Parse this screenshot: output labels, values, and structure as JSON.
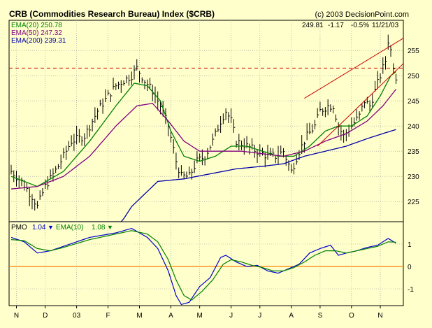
{
  "title": "CRB (Commodities Research Bureau) Index ($CRB)",
  "copyright": "(c) 2003 DecisionPoint.com",
  "quote": {
    "last": "249.81",
    "change": "-1.17",
    "pct": "-0.5%",
    "date": "11/21/03"
  },
  "legend_top": [
    {
      "label": "EMA(20) 250.78",
      "color": "#008000"
    },
    {
      "label": "EMA(50) 247.32",
      "color": "#800080"
    },
    {
      "label": "EMA(200) 239.31",
      "color": "#0000aa"
    }
  ],
  "legend_bottom": {
    "pmo_label": "PMO",
    "pmo_value": "1.04",
    "pmo_arrow": "▼",
    "ema_label": "EMA(10)",
    "ema_value": "1.08",
    "ema_arrow": "▼"
  },
  "colors": {
    "background": "#ffffcc",
    "price": "#000000",
    "ema20": "#008000",
    "ema50": "#800080",
    "ema200": "#0000aa",
    "pmo": "#0000cc",
    "pmo_signal": "#008000",
    "resistance": "#cc0000",
    "zero_line": "#ff8000"
  },
  "chart_data": [
    {
      "type": "line",
      "subtype": "bar-ohlc",
      "title": "CRB (Commodities Research Bureau) Index ($CRB)",
      "x_ticks": [
        "N",
        "D",
        "03",
        "F",
        "M",
        "A",
        "M",
        "J",
        "J",
        "A",
        "S",
        "O",
        "N"
      ],
      "y_ticks": [
        225,
        230,
        235,
        240,
        245,
        250,
        255
      ],
      "ylim": [
        221,
        261
      ],
      "grid": true,
      "resistance_level": 251.5,
      "price_keypoints": [
        [
          0,
          231
        ],
        [
          4,
          229
        ],
        [
          8,
          226
        ],
        [
          10,
          224
        ],
        [
          13,
          228
        ],
        [
          18,
          232
        ],
        [
          23,
          237
        ],
        [
          28,
          238
        ],
        [
          33,
          243
        ],
        [
          37,
          246
        ],
        [
          40,
          248
        ],
        [
          43,
          249
        ],
        [
          46,
          250
        ],
        [
          48,
          251.5
        ],
        [
          51,
          249
        ],
        [
          54,
          247
        ],
        [
          57,
          244
        ],
        [
          60,
          240
        ],
        [
          63,
          233
        ],
        [
          65,
          230
        ],
        [
          68,
          230
        ],
        [
          71,
          233
        ],
        [
          74,
          234
        ],
        [
          77,
          237
        ],
        [
          80,
          241
        ],
        [
          82,
          243
        ],
        [
          84,
          241
        ],
        [
          86,
          237
        ],
        [
          90,
          236
        ],
        [
          94,
          235
        ],
        [
          98,
          234
        ],
        [
          101,
          234
        ],
        [
          104,
          235
        ],
        [
          107,
          231
        ],
        [
          110,
          235
        ],
        [
          113,
          238
        ],
        [
          116,
          240
        ],
        [
          118,
          243
        ],
        [
          121,
          244
        ],
        [
          123,
          244
        ],
        [
          125,
          240
        ],
        [
          127,
          238
        ],
        [
          130,
          240
        ],
        [
          133,
          242
        ],
        [
          135,
          245
        ],
        [
          137,
          244
        ],
        [
          139,
          247
        ],
        [
          141,
          250
        ],
        [
          143,
          253
        ],
        [
          144,
          257
        ],
        [
          145,
          255
        ],
        [
          146,
          252
        ],
        [
          147,
          249.8
        ]
      ],
      "series": [
        {
          "name": "EMA(20)",
          "keypoints": [
            [
              0,
              230
            ],
            [
              10,
              228
            ],
            [
              20,
              231
            ],
            [
              30,
              237
            ],
            [
              40,
              244
            ],
            [
              47,
              248.5
            ],
            [
              52,
              248
            ],
            [
              57,
              245
            ],
            [
              61,
              239
            ],
            [
              66,
              234
            ],
            [
              72,
              233
            ],
            [
              78,
              234
            ],
            [
              84,
              236
            ],
            [
              90,
              236
            ],
            [
              96,
              235
            ],
            [
              102,
              234
            ],
            [
              108,
              234
            ],
            [
              114,
              236
            ],
            [
              120,
              239
            ],
            [
              125,
              240
            ],
            [
              130,
              240
            ],
            [
              136,
              242
            ],
            [
              141,
              246
            ],
            [
              145,
              250
            ],
            [
              147,
              250.8
            ]
          ]
        },
        {
          "name": "EMA(50)",
          "keypoints": [
            [
              0,
              227.5
            ],
            [
              10,
              228
            ],
            [
              20,
              230
            ],
            [
              30,
              234
            ],
            [
              40,
              240
            ],
            [
              48,
              244
            ],
            [
              54,
              244.5
            ],
            [
              60,
              241
            ],
            [
              66,
              237
            ],
            [
              72,
              235
            ],
            [
              80,
              235
            ],
            [
              88,
              235
            ],
            [
              96,
              234.5
            ],
            [
              104,
              234
            ],
            [
              112,
              235
            ],
            [
              120,
              237
            ],
            [
              128,
              238.5
            ],
            [
              136,
              241
            ],
            [
              142,
              244
            ],
            [
              147,
              247.3
            ]
          ]
        },
        {
          "name": "EMA(200)",
          "keypoints": [
            [
              0,
              204
            ],
            [
              20,
              208
            ],
            [
              36,
              216
            ],
            [
              46,
              224
            ],
            [
              56,
              229
            ],
            [
              66,
              229.5
            ],
            [
              76,
              230.5
            ],
            [
              86,
              231.5
            ],
            [
              96,
              232
            ],
            [
              104,
              232.5
            ],
            [
              112,
              234
            ],
            [
              120,
              235
            ],
            [
              128,
              236
            ],
            [
              136,
              237.5
            ],
            [
              142,
              238.5
            ],
            [
              147,
              239.3
            ]
          ]
        }
      ],
      "trendlines": [
        {
          "from": [
            112,
            245.5
          ],
          "to": [
            150,
            257.5
          ]
        },
        {
          "from": [
            117,
            236
          ],
          "to": [
            150,
            252.5
          ]
        }
      ]
    },
    {
      "type": "line",
      "title": "PMO",
      "x_ticks": [
        "N",
        "D",
        "03",
        "F",
        "M",
        "A",
        "M",
        "J",
        "J",
        "A",
        "S",
        "O",
        "N"
      ],
      "y_ticks": [
        -1,
        0,
        1
      ],
      "ylim": [
        -1.75,
        2.0
      ],
      "zero_line": 0,
      "series": [
        {
          "name": "PMO",
          "keypoints": [
            [
              0,
              1.3
            ],
            [
              5,
              1.1
            ],
            [
              10,
              0.6
            ],
            [
              15,
              0.7
            ],
            [
              20,
              0.9
            ],
            [
              30,
              1.3
            ],
            [
              40,
              1.5
            ],
            [
              46,
              1.7
            ],
            [
              52,
              1.3
            ],
            [
              56,
              0.8
            ],
            [
              60,
              -0.2
            ],
            [
              63,
              -1.3
            ],
            [
              65,
              -1.7
            ],
            [
              68,
              -1.6
            ],
            [
              72,
              -0.9
            ],
            [
              76,
              -0.5
            ],
            [
              80,
              0.4
            ],
            [
              82,
              0.5
            ],
            [
              86,
              0.2
            ],
            [
              90,
              0.0
            ],
            [
              94,
              0.05
            ],
            [
              98,
              -0.2
            ],
            [
              102,
              -0.3
            ],
            [
              106,
              -0.1
            ],
            [
              110,
              0.1
            ],
            [
              114,
              0.6
            ],
            [
              118,
              0.8
            ],
            [
              122,
              0.95
            ],
            [
              125,
              0.5
            ],
            [
              128,
              0.6
            ],
            [
              132,
              0.7
            ],
            [
              136,
              0.85
            ],
            [
              140,
              0.95
            ],
            [
              144,
              1.25
            ],
            [
              147,
              1.04
            ]
          ]
        },
        {
          "name": "EMA(10)",
          "keypoints": [
            [
              0,
              1.2
            ],
            [
              5,
              1.15
            ],
            [
              10,
              0.8
            ],
            [
              15,
              0.7
            ],
            [
              20,
              0.85
            ],
            [
              30,
              1.2
            ],
            [
              40,
              1.45
            ],
            [
              46,
              1.6
            ],
            [
              52,
              1.45
            ],
            [
              56,
              1.1
            ],
            [
              60,
              0.3
            ],
            [
              63,
              -0.6
            ],
            [
              66,
              -1.3
            ],
            [
              69,
              -1.5
            ],
            [
              73,
              -1.1
            ],
            [
              77,
              -0.6
            ],
            [
              81,
              0.1
            ],
            [
              84,
              0.3
            ],
            [
              88,
              0.2
            ],
            [
              92,
              0.05
            ],
            [
              96,
              -0.05
            ],
            [
              100,
              -0.2
            ],
            [
              104,
              -0.2
            ],
            [
              108,
              -0.05
            ],
            [
              112,
              0.2
            ],
            [
              116,
              0.5
            ],
            [
              120,
              0.7
            ],
            [
              124,
              0.7
            ],
            [
              128,
              0.6
            ],
            [
              132,
              0.7
            ],
            [
              136,
              0.8
            ],
            [
              140,
              0.9
            ],
            [
              144,
              1.1
            ],
            [
              147,
              1.08
            ]
          ]
        }
      ]
    }
  ]
}
